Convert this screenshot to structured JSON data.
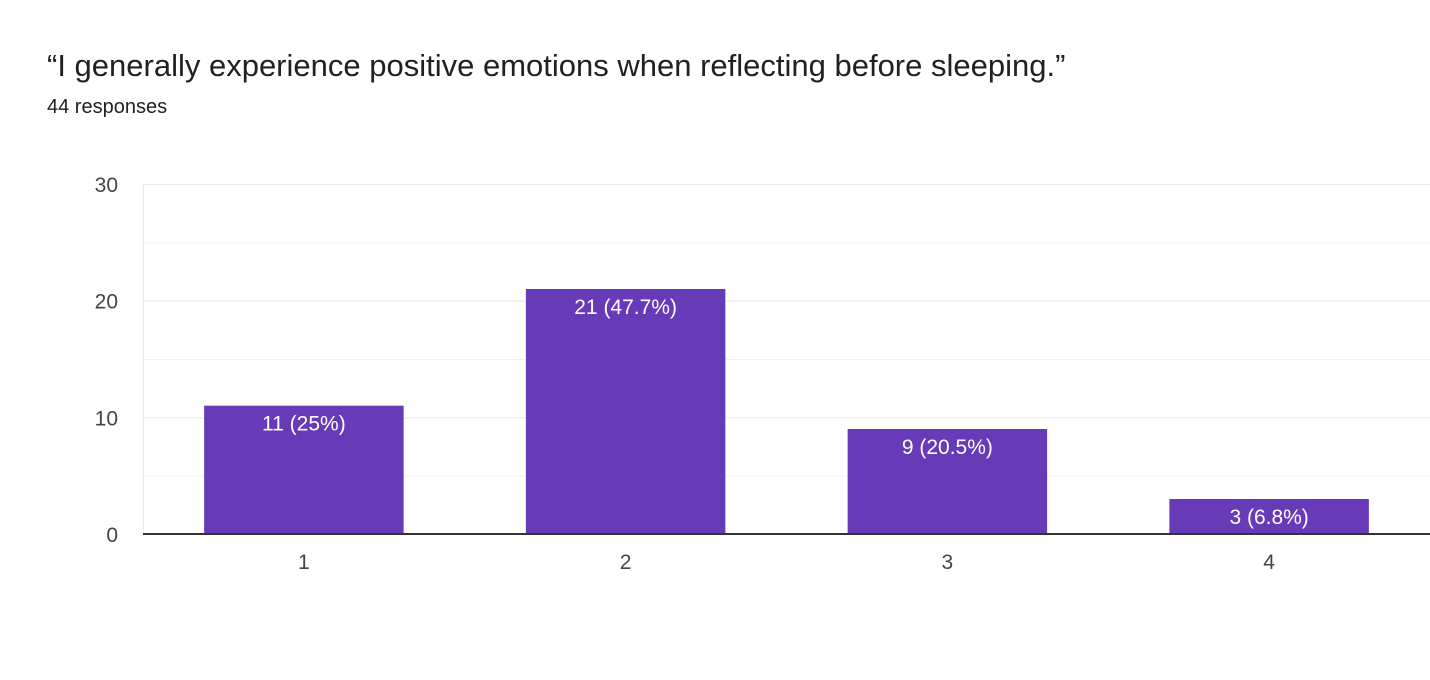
{
  "question": {
    "title": "“I generally experience positive emotions when reflecting before sleeping.”",
    "responses_label": "44 responses"
  },
  "colors": {
    "bar": "#673ab7",
    "bar_label": "#ffffff",
    "gridline": "#e8e8e8",
    "axis": "#333333",
    "tick_text": "#444444"
  },
  "chart_data": {
    "type": "bar",
    "title": "“I generally experience positive emotions when reflecting before sleeping.”",
    "xlabel": "",
    "ylabel": "",
    "categories": [
      "1",
      "2",
      "3",
      "4"
    ],
    "values": [
      11,
      21,
      9,
      3
    ],
    "data_labels": [
      "11 (25%)",
      "21 (47.7%)",
      "9 (20.5%)",
      "3 (6.8%)"
    ],
    "ylim": [
      0,
      30
    ],
    "yticks": [
      0,
      10,
      20,
      30
    ],
    "minor_gridlines": [
      5,
      15,
      25
    ],
    "grid": true,
    "legend": "none"
  }
}
